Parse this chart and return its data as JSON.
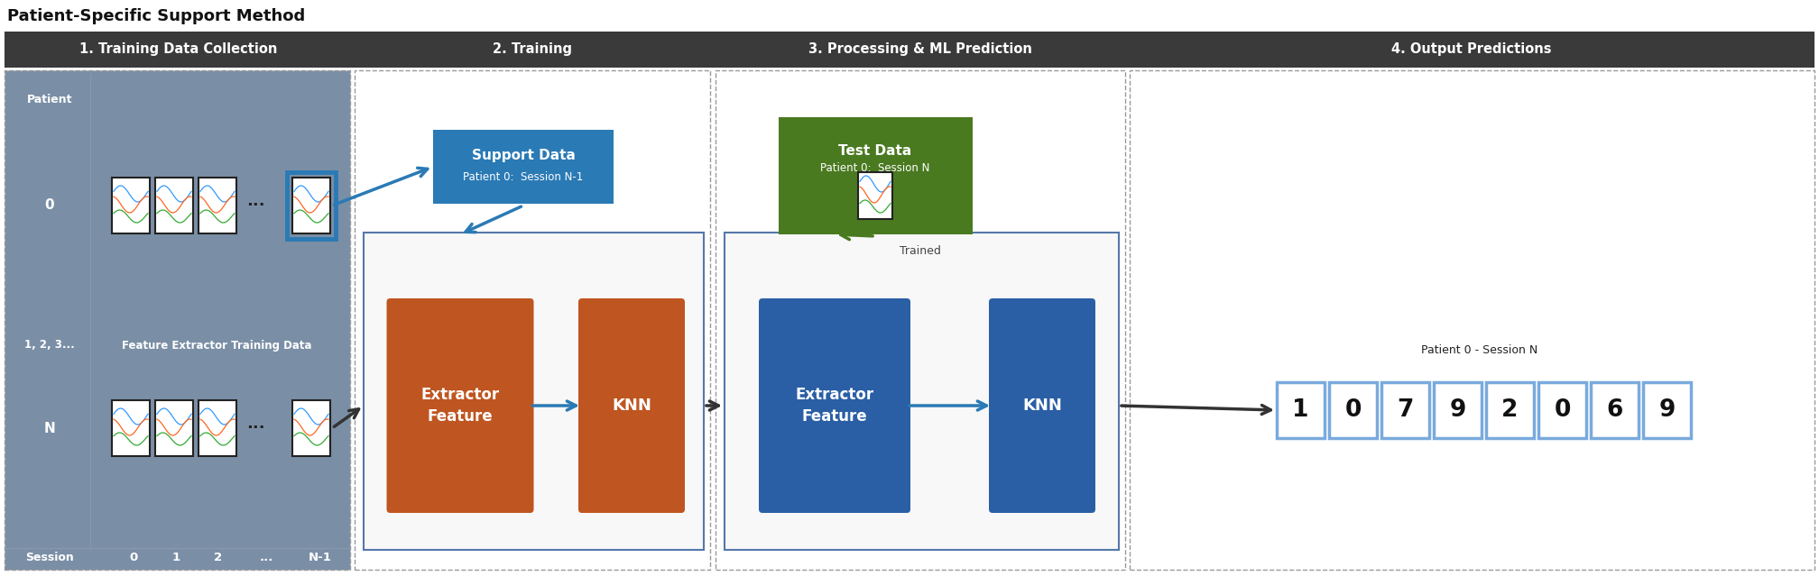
{
  "title": "Patient-Specific Support Method",
  "stage_labels": [
    "1. Training Data Collection",
    "2. Training",
    "3. Processing & ML Prediction",
    "4. Output Predictions"
  ],
  "header_bg": "#3a3a3a",
  "header_text": "#ffffff",
  "section1_bg": "#7a8fa6",
  "feature_extractor_color": "#bf5520",
  "knn_color": "#bf5520",
  "feature_extractor_stage3_color": "#2a5fa5",
  "knn_stage3_color": "#2a5fa5",
  "support_data_color": "#2a7ab5",
  "test_data_color": "#4a7a20",
  "output_digits": [
    "1",
    "0",
    "7",
    "9",
    "2",
    "0",
    "6",
    "9"
  ],
  "output_border_color": "#7aaadd",
  "background_color": "#ffffff",
  "dashed_border_color": "#999999",
  "blue_highlight_color": "#2a7ab5",
  "green_arrow_color": "#4a7a20",
  "dark_arrow_color": "#333333"
}
